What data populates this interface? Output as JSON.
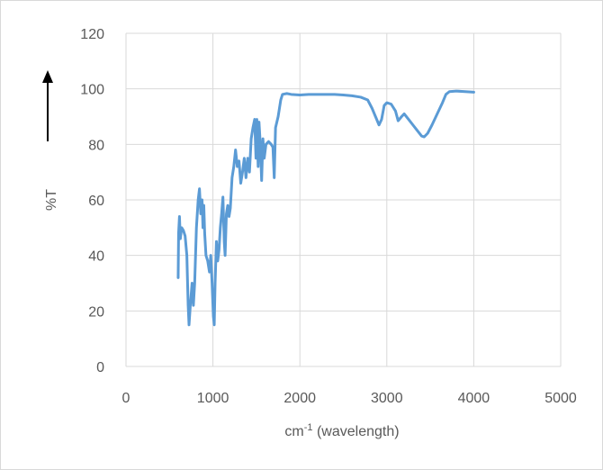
{
  "chart_data": {
    "type": "line",
    "y_label": "%T",
    "x_label": [
      "cm",
      "-1",
      " (wavelength)"
    ],
    "xlim": [
      0,
      5000
    ],
    "xticks": [
      0,
      1000,
      2000,
      3000,
      4000,
      5000
    ],
    "ylim": [
      0,
      120
    ],
    "yticks": [
      0,
      20,
      40,
      60,
      80,
      100,
      120
    ],
    "grid": true,
    "x": [
      600,
      605,
      615,
      625,
      640,
      660,
      680,
      700,
      715,
      725,
      740,
      760,
      775,
      790,
      810,
      830,
      845,
      860,
      875,
      885,
      895,
      905,
      920,
      940,
      960,
      975,
      990,
      1005,
      1015,
      1025,
      1040,
      1055,
      1070,
      1085,
      1100,
      1115,
      1130,
      1140,
      1155,
      1170,
      1185,
      1200,
      1220,
      1240,
      1260,
      1280,
      1300,
      1320,
      1340,
      1360,
      1380,
      1400,
      1420,
      1440,
      1460,
      1480,
      1495,
      1505,
      1520,
      1530,
      1545,
      1560,
      1575,
      1590,
      1610,
      1640,
      1670,
      1690,
      1705,
      1720,
      1750,
      1780,
      1800,
      1850,
      1900,
      2000,
      2100,
      2200,
      2300,
      2400,
      2500,
      2600,
      2700,
      2780,
      2830,
      2870,
      2910,
      2940,
      2970,
      3000,
      3050,
      3100,
      3130,
      3170,
      3200,
      3250,
      3300,
      3350,
      3400,
      3430,
      3470,
      3520,
      3580,
      3640,
      3680,
      3720,
      3800,
      3900,
      4000
    ],
    "series": [
      {
        "color": "#5b9bd5",
        "values": [
          32,
          48,
          54,
          46,
          50,
          49,
          47,
          40,
          22,
          15,
          22,
          30,
          22,
          30,
          50,
          60,
          64,
          55,
          60,
          50,
          58,
          48,
          40,
          38,
          34,
          40,
          30,
          18,
          15,
          30,
          45,
          38,
          42,
          50,
          55,
          61,
          45,
          40,
          55,
          58,
          54,
          57,
          68,
          72,
          78,
          72,
          74,
          66,
          70,
          75,
          68,
          75,
          70,
          82,
          86,
          89,
          75,
          89,
          72,
          88,
          80,
          67,
          82,
          75,
          80,
          81,
          80,
          79,
          68,
          86,
          90,
          96,
          98,
          98.3,
          98,
          97.8,
          98,
          98,
          98,
          98,
          97.8,
          97.5,
          97,
          96,
          93,
          90,
          87,
          89,
          94,
          95,
          94.5,
          92,
          88.5,
          90,
          91,
          89,
          87,
          85,
          83,
          82.7,
          84,
          87,
          91,
          95,
          98,
          99,
          99.2,
          99,
          98.8
        ]
      }
    ]
  }
}
